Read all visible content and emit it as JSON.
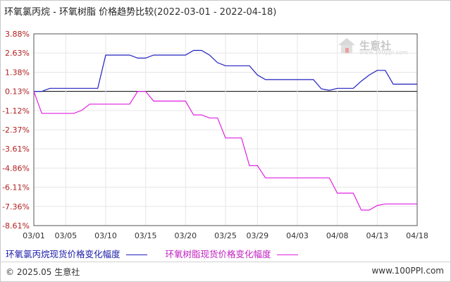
{
  "title": {
    "text": "环氧氯丙烷 - 环氧树脂 价格趋势比较",
    "range": "(2022-03-01 - 2022-04-18)"
  },
  "watermark": {
    "brand": "生意社",
    "url": "www.100ppi.com"
  },
  "footer": {
    "copyright": "© 2025.05 生意社",
    "url": "www.100PPI.com"
  },
  "colors": {
    "series1": "#2020c0",
    "series2": "#e020e0",
    "grid": "#e6e6e6",
    "axis": "#555555",
    "zero": "#000000"
  },
  "chart_data": {
    "type": "line",
    "title": "环氧氯丙烷 - 环氧树脂 价格趋势比较",
    "xlabel": "",
    "ylabel": "",
    "x_ticks": [
      "03/01",
      "03/05",
      "03/10",
      "03/15",
      "03/20",
      "03/25",
      "03/29",
      "04/03",
      "04/08",
      "04/13",
      "04/18"
    ],
    "y_ticks": [
      "3.88%",
      "2.63%",
      "1.38%",
      "0.13%",
      "-1.12%",
      "-2.37%",
      "-3.61%",
      "-4.86%",
      "-6.11%",
      "-7.36%",
      "-8.61%"
    ],
    "ylim": [
      -8.61,
      3.88
    ],
    "x_range_days": [
      0,
      48
    ],
    "grid": true,
    "legend_position": "bottom",
    "series": [
      {
        "name": "环氧氯丙烷现货价格变化幅度",
        "color": "#2020c0",
        "points": [
          [
            "03/01",
            0.13
          ],
          [
            "03/02",
            0.13
          ],
          [
            "03/03",
            0.33
          ],
          [
            "03/04",
            0.33
          ],
          [
            "03/05",
            0.33
          ],
          [
            "03/06",
            0.33
          ],
          [
            "03/07",
            0.33
          ],
          [
            "03/08",
            0.33
          ],
          [
            "03/09",
            0.33
          ],
          [
            "03/10",
            2.5
          ],
          [
            "03/11",
            2.5
          ],
          [
            "03/12",
            2.5
          ],
          [
            "03/13",
            2.5
          ],
          [
            "03/14",
            2.3
          ],
          [
            "03/15",
            2.3
          ],
          [
            "03/16",
            2.5
          ],
          [
            "03/17",
            2.5
          ],
          [
            "03/18",
            2.5
          ],
          [
            "03/19",
            2.5
          ],
          [
            "03/20",
            2.5
          ],
          [
            "03/21",
            2.8
          ],
          [
            "03/22",
            2.8
          ],
          [
            "03/23",
            2.5
          ],
          [
            "03/24",
            2.0
          ],
          [
            "03/25",
            1.8
          ],
          [
            "03/26",
            1.8
          ],
          [
            "03/27",
            1.8
          ],
          [
            "03/28",
            1.8
          ],
          [
            "03/29",
            1.2
          ],
          [
            "03/30",
            0.9
          ],
          [
            "03/31",
            0.9
          ],
          [
            "04/01",
            0.9
          ],
          [
            "04/02",
            0.9
          ],
          [
            "04/03",
            0.9
          ],
          [
            "04/04",
            0.9
          ],
          [
            "04/05",
            0.9
          ],
          [
            "04/06",
            0.3
          ],
          [
            "04/07",
            0.2
          ],
          [
            "04/08",
            0.33
          ],
          [
            "04/09",
            0.33
          ],
          [
            "04/10",
            0.33
          ],
          [
            "04/11",
            0.8
          ],
          [
            "04/12",
            1.2
          ],
          [
            "04/13",
            1.5
          ],
          [
            "04/14",
            1.5
          ],
          [
            "04/15",
            0.6
          ],
          [
            "04/16",
            0.6
          ],
          [
            "04/17",
            0.6
          ],
          [
            "04/18",
            0.6
          ]
        ]
      },
      {
        "name": "环氧树脂现货价格变化幅度",
        "color": "#e020e0",
        "points": [
          [
            "03/01",
            0.13
          ],
          [
            "03/02",
            -1.3
          ],
          [
            "03/03",
            -1.3
          ],
          [
            "03/04",
            -1.3
          ],
          [
            "03/05",
            -1.3
          ],
          [
            "03/06",
            -1.3
          ],
          [
            "03/07",
            -1.1
          ],
          [
            "03/08",
            -0.7
          ],
          [
            "03/09",
            -0.7
          ],
          [
            "03/10",
            -0.7
          ],
          [
            "03/11",
            -0.7
          ],
          [
            "03/12",
            -0.7
          ],
          [
            "03/13",
            -0.7
          ],
          [
            "03/14",
            0.13
          ],
          [
            "03/15",
            0.13
          ],
          [
            "03/16",
            -0.5
          ],
          [
            "03/17",
            -0.5
          ],
          [
            "03/18",
            -0.5
          ],
          [
            "03/19",
            -0.5
          ],
          [
            "03/20",
            -0.5
          ],
          [
            "03/21",
            -1.4
          ],
          [
            "03/22",
            -1.4
          ],
          [
            "03/23",
            -1.6
          ],
          [
            "03/24",
            -1.6
          ],
          [
            "03/25",
            -2.9
          ],
          [
            "03/26",
            -2.9
          ],
          [
            "03/27",
            -2.9
          ],
          [
            "03/28",
            -4.7
          ],
          [
            "03/29",
            -4.7
          ],
          [
            "03/30",
            -5.5
          ],
          [
            "03/31",
            -5.5
          ],
          [
            "04/01",
            -5.5
          ],
          [
            "04/02",
            -5.5
          ],
          [
            "04/03",
            -5.5
          ],
          [
            "04/04",
            -5.5
          ],
          [
            "04/05",
            -5.5
          ],
          [
            "04/06",
            -5.5
          ],
          [
            "04/07",
            -5.5
          ],
          [
            "04/08",
            -6.5
          ],
          [
            "04/09",
            -6.5
          ],
          [
            "04/10",
            -6.5
          ],
          [
            "04/11",
            -7.6
          ],
          [
            "04/12",
            -7.6
          ],
          [
            "04/13",
            -7.3
          ],
          [
            "04/14",
            -7.2
          ],
          [
            "04/15",
            -7.2
          ],
          [
            "04/16",
            -7.2
          ],
          [
            "04/17",
            -7.2
          ],
          [
            "04/18",
            -7.2
          ]
        ]
      }
    ]
  }
}
